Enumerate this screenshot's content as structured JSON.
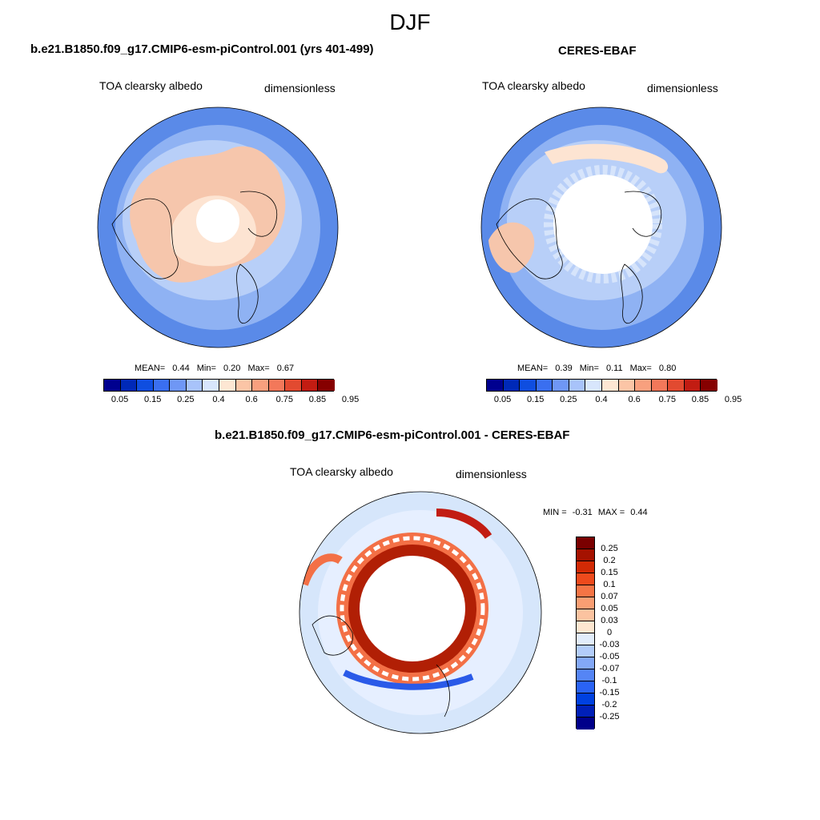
{
  "figure": {
    "season": "DJF",
    "palette": {
      "abs_colors": [
        "#00008f",
        "#0029b8",
        "#0f4ee0",
        "#3a6ff0",
        "#6f97f5",
        "#a8c3fa",
        "#d8e6fc",
        "#fde7d3",
        "#fbc5a6",
        "#f8a07e",
        "#f3785a",
        "#e24a30",
        "#c21c12",
        "#860000"
      ],
      "diff_colors": [
        "#00008a",
        "#0020b8",
        "#0041e0",
        "#2a63f5",
        "#5585f5",
        "#83a8f7",
        "#b3cdfa",
        "#e2edfb",
        "#fde6d0",
        "#fbc3a0",
        "#f99e73",
        "#f57445",
        "#ee4a1c",
        "#d22a05",
        "#a51200",
        "#7a0000"
      ],
      "coast": "#000000",
      "background_ocean": "#5b8be8"
    }
  },
  "panels": [
    {
      "id": "model",
      "case_title": "b.e21.B1850.f09_g17.CMIP6-esm-piControl.001 (yrs 401-499)",
      "variable": "TOA clearsky albedo",
      "units": "dimensionless",
      "stats": {
        "mean_label": "MEAN=",
        "mean": "0.44",
        "min_label": "Min=",
        "min": "0.20",
        "max_label": "Max=",
        "max": "0.67"
      }
    },
    {
      "id": "obs",
      "case_title": "CERES-EBAF",
      "variable": "TOA clearsky albedo",
      "units": "dimensionless",
      "stats": {
        "mean_label": "MEAN=",
        "mean": "0.39",
        "min_label": "Min=",
        "min": "0.11",
        "max_label": "Max=",
        "max": "0.80"
      }
    },
    {
      "id": "diff",
      "case_title": "b.e21.B1850.f09_g17.CMIP6-esm-piControl.001 - CERES-EBAF",
      "variable": "TOA clearsky albedo",
      "units": "dimensionless",
      "stats": {
        "min_label": "MIN =",
        "min": "-0.31",
        "max_label": "MAX =",
        "max": "0.44"
      }
    }
  ],
  "chart_data": [
    {
      "type": "heatmap",
      "projection": "north polar stereographic",
      "title": "TOA clearsky albedo",
      "colorbar": {
        "orientation": "horizontal",
        "levels": [
          0.05,
          0.15,
          0.25,
          0.4,
          0.6,
          0.75,
          0.85,
          0.95
        ],
        "level_labels": [
          "0.05",
          "0.15",
          "0.25",
          "0.4",
          "0.6",
          "0.75",
          "0.85",
          "0.95"
        ]
      },
      "summary": {
        "mean": 0.44,
        "min": 0.2,
        "max": 0.67
      }
    },
    {
      "type": "heatmap",
      "projection": "north polar stereographic",
      "title": "TOA clearsky albedo",
      "colorbar": {
        "orientation": "horizontal",
        "levels": [
          0.05,
          0.15,
          0.25,
          0.4,
          0.6,
          0.75,
          0.85,
          0.95
        ],
        "level_labels": [
          "0.05",
          "0.15",
          "0.25",
          "0.4",
          "0.6",
          "0.75",
          "0.85",
          "0.95"
        ]
      },
      "summary": {
        "mean": 0.39,
        "min": 0.11,
        "max": 0.8
      }
    },
    {
      "type": "heatmap",
      "projection": "north polar stereographic",
      "title": "TOA clearsky albedo",
      "colorbar": {
        "orientation": "vertical",
        "levels": [
          0.25,
          0.2,
          0.15,
          0.1,
          0.07,
          0.05,
          0.03,
          0,
          -0.03,
          -0.05,
          -0.07,
          -0.1,
          -0.15,
          -0.2,
          -0.25
        ],
        "level_labels": [
          "0.25",
          "0.2",
          "0.15",
          "0.1",
          "0.07",
          "0.05",
          "0.03",
          "0",
          "-0.03",
          "-0.05",
          "-0.07",
          "-0.1",
          "-0.15",
          "-0.2",
          "-0.25"
        ]
      },
      "summary": {
        "min": -0.31,
        "max": 0.44
      }
    }
  ]
}
